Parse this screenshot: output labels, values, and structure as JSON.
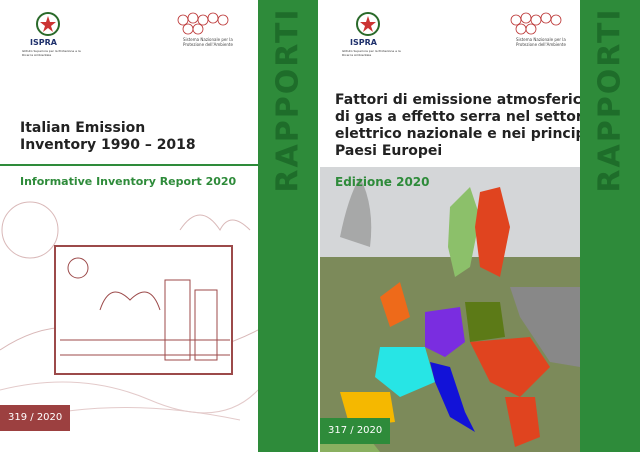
{
  "left": {
    "org": "ISPRA",
    "org_full": "Istituto Superiore per la Protezione e la Ricerca Ambientale",
    "network": "Sistema Nazionale per la Protezione dell'Ambiente",
    "title_lines": [
      "Italian Emission",
      "Inventory 1990 – 2018"
    ],
    "subtitle": "Informative Inventory Report 2020",
    "series": "RAPPORTI",
    "number": "319 / 2020"
  },
  "right": {
    "org": "ISPRA",
    "org_full": "Istituto Superiore per la Protezione e la Ricerca Ambientale",
    "network": "Sistema Nazionale per la Protezione dell'Ambiente",
    "title_lines": [
      "Fattori di emissione atmosferica",
      "di gas a effetto serra nel settore",
      "elettrico nazionale e nei principali",
      "Paesi Europei"
    ],
    "subtitle": "Edizione 2020",
    "series": "RAPPORTI",
    "number": "317 / 2020"
  }
}
